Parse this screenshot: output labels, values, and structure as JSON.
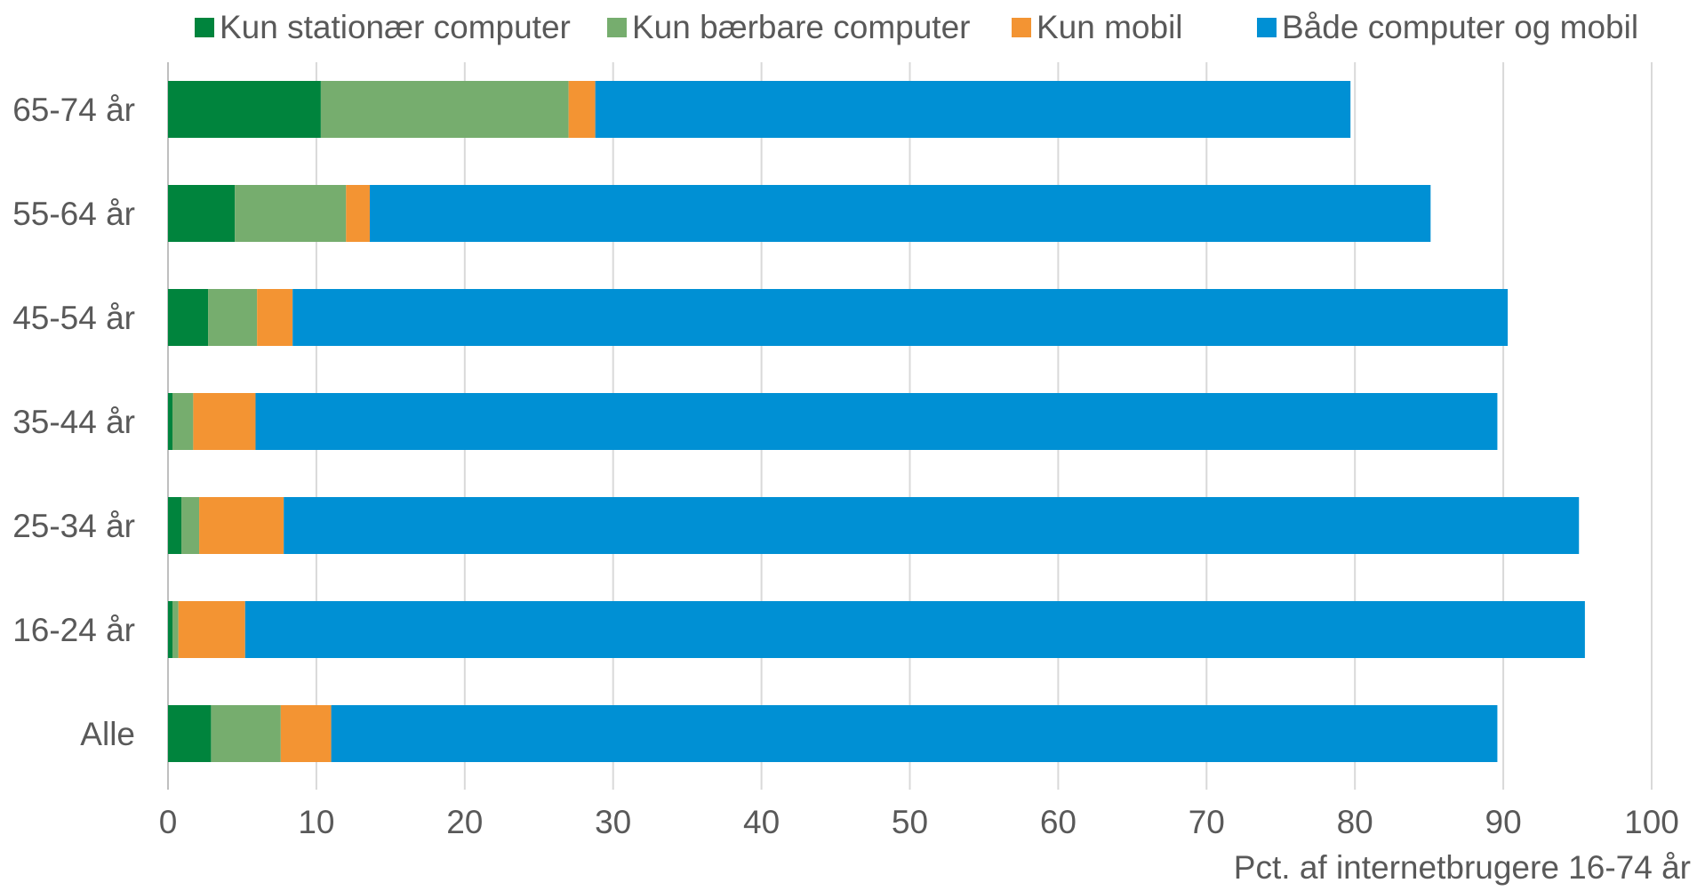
{
  "chart_data": {
    "type": "bar",
    "orientation": "horizontal",
    "stacked": true,
    "categories": [
      "65-74 år",
      "55-64 år",
      "45-54 år",
      "35-44 år",
      "25-34 år",
      "16-24 år",
      "Alle"
    ],
    "series": [
      {
        "name": "Kun stationær computer",
        "color": "#00843d",
        "values": [
          10.3,
          4.5,
          2.7,
          0.3,
          0.9,
          0.3,
          2.9
        ]
      },
      {
        "name": "Kun bærbare computer",
        "color": "#76ad6e",
        "values": [
          16.7,
          7.5,
          3.3,
          1.4,
          1.2,
          0.4,
          4.7
        ]
      },
      {
        "name": "Kun mobil",
        "color": "#f39433",
        "values": [
          1.8,
          1.6,
          2.4,
          4.2,
          5.7,
          4.5,
          3.4
        ]
      },
      {
        "name": "Både computer og mobil",
        "color": "#0090d4",
        "values": [
          50.9,
          71.5,
          81.9,
          83.7,
          87.3,
          90.3,
          78.6
        ]
      }
    ],
    "xlim": [
      0,
      100
    ],
    "xticks": [
      "0",
      "10",
      "20",
      "30",
      "40",
      "50",
      "60",
      "70",
      "80",
      "90",
      "100"
    ],
    "xlabel": "Pct. af internetbrugere 16-74 år",
    "ylabel": "",
    "title": "",
    "grid": "vertical",
    "legend_position": "top"
  }
}
